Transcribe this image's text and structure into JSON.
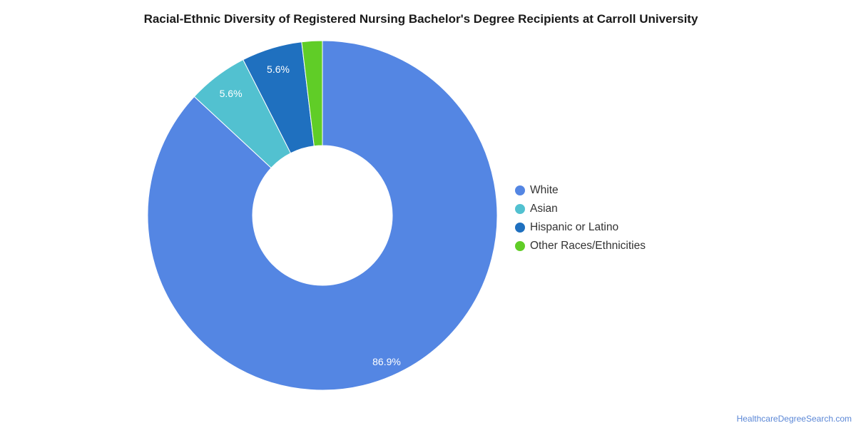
{
  "chart_data": {
    "type": "pie",
    "variant": "donut",
    "title": "Racial-Ethnic Diversity of Registered Nursing Bachelor's Degree Recipients at Carroll University",
    "start_angle_deg": 0,
    "direction": "clockwise",
    "legend_position": "right",
    "slices": [
      {
        "name": "White",
        "value": 86.9,
        "label": "86.9%",
        "color": "#5486e3"
      },
      {
        "name": "Asian",
        "value": 5.6,
        "label": "5.6%",
        "color": "#52c1d0"
      },
      {
        "name": "Hispanic or Latino",
        "value": 5.6,
        "label": "5.6%",
        "color": "#1f70bf"
      },
      {
        "name": "Other Races/Ethnicities",
        "value": 1.9,
        "label": "",
        "color": "#60cd27"
      }
    ]
  },
  "footer": {
    "source": "HealthcareDegreeSearch.com"
  }
}
